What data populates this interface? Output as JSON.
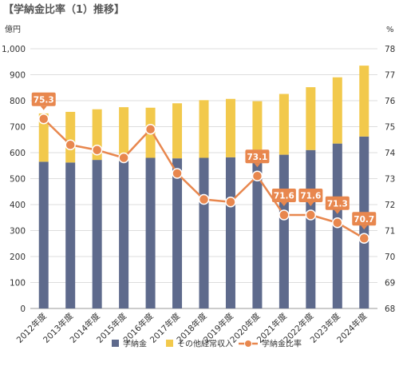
{
  "chart_data": {
    "type": "bar+line",
    "title": "【学納金比率（1）推移】",
    "y_left_unit": "億円",
    "y_right_unit": "%",
    "categories": [
      "2012年度",
      "2013年度",
      "2014年度",
      "2015年度",
      "2016年度",
      "2017年度",
      "2018年度",
      "2019年度",
      "2020年度",
      "2021年度",
      "2022年度",
      "2023年度",
      "2024年度"
    ],
    "ylim_left": [
      0,
      1000
    ],
    "yticks_left": [
      "0",
      "100",
      "200",
      "300",
      "400",
      "500",
      "600",
      "700",
      "800",
      "900",
      "1,000"
    ],
    "ylim_right": [
      68,
      78
    ],
    "yticks_right": [
      "68",
      "69",
      "70",
      "71",
      "72",
      "73",
      "74",
      "75",
      "76",
      "77",
      "78"
    ],
    "series": [
      {
        "name": "学納金",
        "type": "bar",
        "stack": "total",
        "color": "#5e6a8c",
        "values": [
          565,
          562,
          572,
          568,
          580,
          578,
          580,
          582,
          585,
          592,
          610,
          635,
          662
        ]
      },
      {
        "name": "その他経常収入",
        "type": "bar",
        "stack": "total",
        "color": "#f2c94c",
        "values": [
          186,
          195,
          195,
          207,
          193,
          212,
          222,
          225,
          213,
          234,
          242,
          255,
          273
        ]
      },
      {
        "name": "学納金比率",
        "type": "line",
        "axis": "right",
        "color": "#e8874e",
        "values": [
          75.3,
          74.3,
          74.1,
          73.8,
          74.9,
          73.2,
          72.2,
          72.1,
          73.1,
          71.6,
          71.6,
          71.3,
          70.7
        ]
      }
    ],
    "data_labels": [
      {
        "index": 0,
        "text": "75.3"
      },
      {
        "index": 8,
        "text": "73.1"
      },
      {
        "index": 9,
        "text": "71.6"
      },
      {
        "index": 10,
        "text": "71.6"
      },
      {
        "index": 11,
        "text": "71.3"
      },
      {
        "index": 12,
        "text": "70.7"
      }
    ],
    "grid": true,
    "legend_position": "bottom",
    "label_box_color": "#e8874e"
  }
}
